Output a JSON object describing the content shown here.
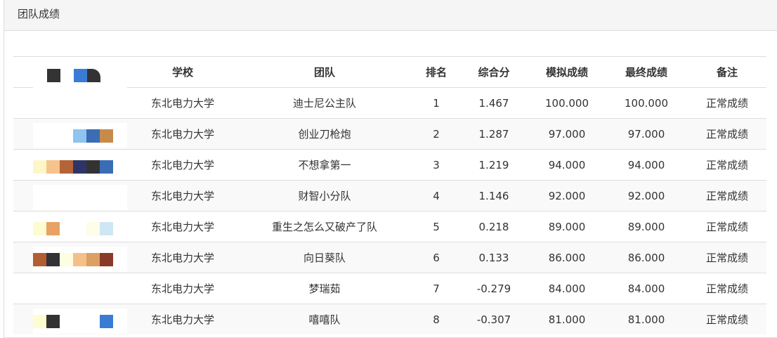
{
  "panel": {
    "title": "团队成绩"
  },
  "table": {
    "headers": [
      "",
      "学校",
      "团队",
      "排名",
      "综合分",
      "模拟成绩",
      "最终成绩",
      "备注"
    ],
    "rows": [
      {
        "school": "东北电力大学",
        "team": "迪士尼公主队",
        "rank": "1",
        "score": "1.467",
        "sim": "100.000",
        "final": "100.000",
        "note": "正常成绩",
        "mosaic": []
      },
      {
        "school": "东北电力大学",
        "team": "创业刀枪炮",
        "rank": "2",
        "score": "1.287",
        "sim": "97.000",
        "final": "97.000",
        "note": "正常成绩",
        "mosaic": [
          "",
          "",
          "",
          "#8ec4ef",
          "#3a6db5",
          "#c88a4a"
        ]
      },
      {
        "school": "东北电力大学",
        "team": "不想拿第一",
        "rank": "3",
        "score": "1.219",
        "sim": "94.000",
        "final": "94.000",
        "note": "正常成绩",
        "mosaic": [
          "#fff6c8",
          "#f6c38d",
          "#b5643a",
          "#2e3566",
          "#333",
          "#3a6db5"
        ]
      },
      {
        "school": "东北电力大学",
        "team": "财智小分队",
        "rank": "4",
        "score": "1.146",
        "sim": "92.000",
        "final": "92.000",
        "note": "正常成绩",
        "mosaic": []
      },
      {
        "school": "东北电力大学",
        "team": "重生之怎么又破产了队",
        "rank": "5",
        "score": "0.218",
        "sim": "89.000",
        "final": "89.000",
        "note": "正常成绩",
        "mosaic": [
          "#fffbd0",
          "#e8a264",
          "",
          "",
          "#fdfde8",
          "#cfe6f4"
        ]
      },
      {
        "school": "东北电力大学",
        "team": "向日葵队",
        "rank": "6",
        "score": "0.133",
        "sim": "86.000",
        "final": "86.000",
        "note": "正常成绩",
        "mosaic": [
          "#b35d33",
          "#333",
          "#fdfde0",
          "#f4c08a",
          "#dca062",
          "#8a3a2a"
        ]
      },
      {
        "school": "东北电力大学",
        "team": "梦瑞茹",
        "rank": "7",
        "score": "-0.279",
        "sim": "84.000",
        "final": "84.000",
        "note": "正常成绩",
        "mosaic": []
      },
      {
        "school": "东北电力大学",
        "team": "嘻嘻队",
        "rank": "8",
        "score": "-0.307",
        "sim": "81.000",
        "final": "81.000",
        "note": "正常成绩",
        "mosaic": [
          "#fdfdd0",
          "#333",
          "",
          "",
          "",
          "#3a7bd5"
        ]
      }
    ]
  }
}
